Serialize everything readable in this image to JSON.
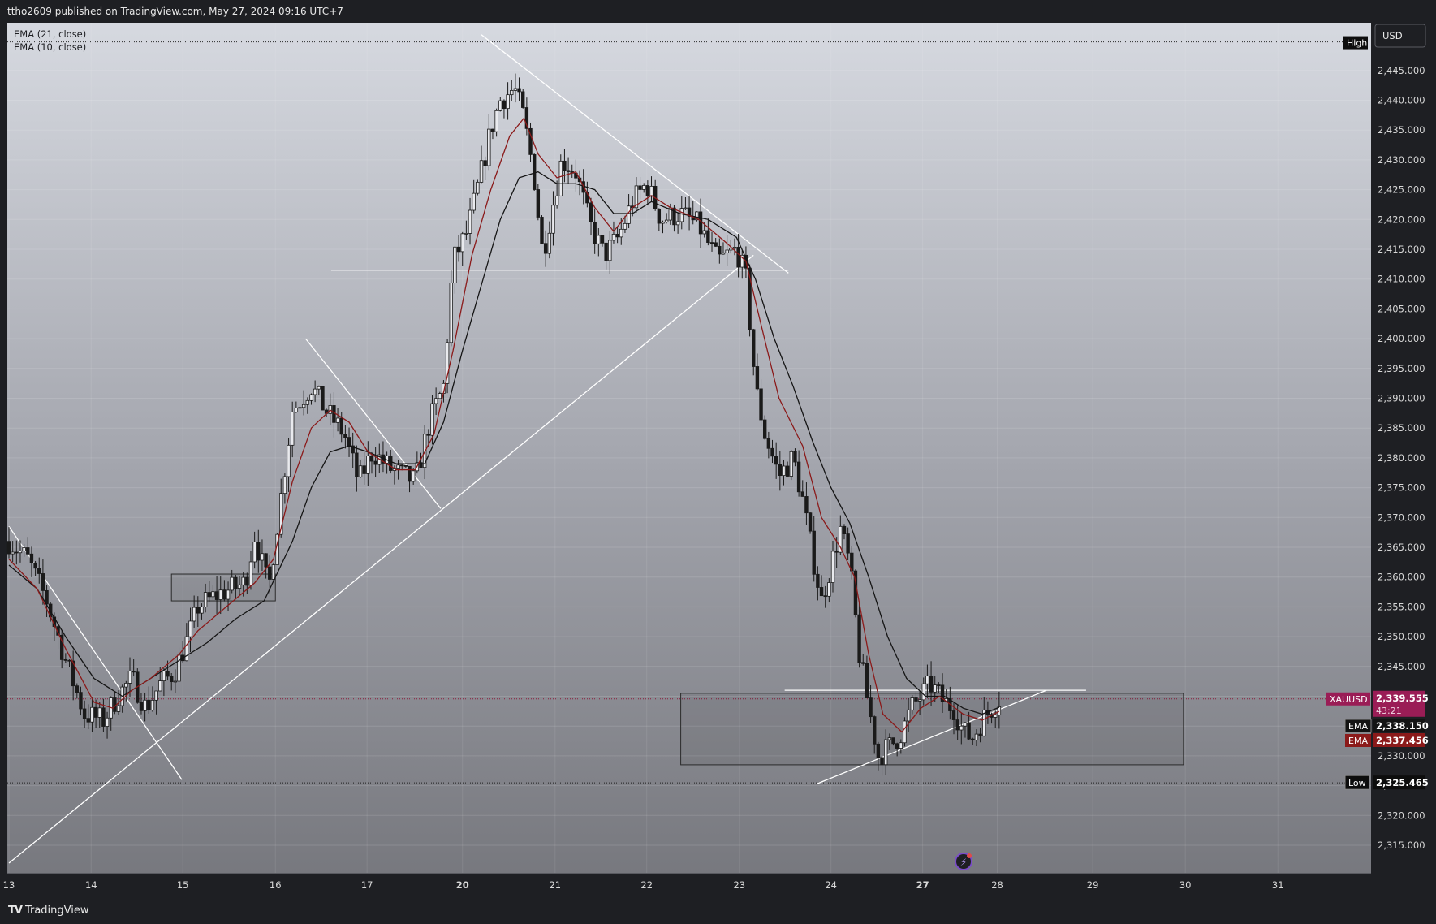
{
  "header": {
    "published_by": "ttho2609 published on TradingView.com, May 27, 2024 09:16 UTC+7"
  },
  "footer": {
    "logo_text": "TradingView"
  },
  "indicators": [
    "EMA (21, close)",
    "EMA (10, close)"
  ],
  "currency_button": "USD",
  "price_labels": {
    "high_tag": "High",
    "low_tag": "Low",
    "low_value": "2,325.465",
    "symbol": "XAUUSD",
    "last_price": "2,339.555",
    "countdown": "43:21",
    "ema_tag": "EMA",
    "ema21_value": "2,338.150",
    "ema10_value": "2,337.456"
  },
  "colors": {
    "symbol_tag": "#9a1d56",
    "ema21_tag": "#141414",
    "ema10_tag": "#8b1a1a",
    "ema10_line": "#8b1a1a",
    "ema21_line": "#151515",
    "candle": "#1a1a1a",
    "trendline": "#ffffff"
  },
  "chart_data": {
    "type": "candlestick",
    "symbol": "XAUUSD",
    "ylim": [
      2310,
      2451
    ],
    "y_ticks": [
      "2,315.000",
      "2,320.000",
      "2,325.000",
      "2,330.000",
      "2,335.000",
      "2,340.000",
      "2,345.000",
      "2,350.000",
      "2,355.000",
      "2,360.000",
      "2,365.000",
      "2,370.000",
      "2,375.000",
      "2,380.000",
      "2,385.000",
      "2,390.000",
      "2,395.000",
      "2,400.000",
      "2,405.000",
      "2,410.000",
      "2,415.000",
      "2,420.000",
      "2,425.000",
      "2,430.000",
      "2,435.000",
      "2,440.000",
      "2,445.000"
    ],
    "x_ticks": [
      {
        "label": "13",
        "day": 0.0,
        "bold": false
      },
      {
        "label": "14",
        "day": 0.87,
        "bold": false
      },
      {
        "label": "15",
        "day": 1.84,
        "bold": false
      },
      {
        "label": "16",
        "day": 2.82,
        "bold": false
      },
      {
        "label": "17",
        "day": 3.79,
        "bold": false
      },
      {
        "label": "20",
        "day": 4.8,
        "bold": true
      },
      {
        "label": "21",
        "day": 5.78,
        "bold": false
      },
      {
        "label": "22",
        "day": 6.75,
        "bold": false
      },
      {
        "label": "23",
        "day": 7.73,
        "bold": false
      },
      {
        "label": "24",
        "day": 8.7,
        "bold": false
      },
      {
        "label": "27",
        "day": 9.67,
        "bold": true
      },
      {
        "label": "28",
        "day": 10.46,
        "bold": false
      },
      {
        "label": "29",
        "day": 11.47,
        "bold": false
      },
      {
        "label": "30",
        "day": 12.45,
        "bold": false
      },
      {
        "label": "31",
        "day": 13.43,
        "bold": false
      }
    ],
    "waypoints": [
      [
        0.0,
        2366
      ],
      [
        0.2,
        2363
      ],
      [
        0.4,
        2356
      ],
      [
        0.6,
        2346
      ],
      [
        0.8,
        2337
      ],
      [
        1.0,
        2336
      ],
      [
        1.15,
        2340
      ],
      [
        1.3,
        2343
      ],
      [
        1.45,
        2338
      ],
      [
        1.6,
        2342
      ],
      [
        1.75,
        2344
      ],
      [
        1.9,
        2350
      ],
      [
        2.0,
        2355
      ],
      [
        2.2,
        2357
      ],
      [
        2.5,
        2359
      ],
      [
        2.6,
        2367
      ],
      [
        2.75,
        2358
      ],
      [
        2.9,
        2376
      ],
      [
        3.0,
        2388
      ],
      [
        3.2,
        2392
      ],
      [
        3.35,
        2388
      ],
      [
        3.55,
        2384
      ],
      [
        3.7,
        2376
      ],
      [
        3.85,
        2381
      ],
      [
        4.05,
        2378
      ],
      [
        4.3,
        2376
      ],
      [
        4.45,
        2386
      ],
      [
        4.6,
        2392
      ],
      [
        4.7,
        2413
      ],
      [
        4.85,
        2418
      ],
      [
        5.0,
        2428
      ],
      [
        5.1,
        2435
      ],
      [
        5.2,
        2440
      ],
      [
        5.35,
        2442
      ],
      [
        5.45,
        2437
      ],
      [
        5.55,
        2428
      ],
      [
        5.65,
        2414
      ],
      [
        5.75,
        2422
      ],
      [
        5.85,
        2430
      ],
      [
        6.0,
        2428
      ],
      [
        6.15,
        2419
      ],
      [
        6.3,
        2414
      ],
      [
        6.45,
        2417
      ],
      [
        6.6,
        2423
      ],
      [
        6.75,
        2426
      ],
      [
        6.9,
        2420
      ],
      [
        7.1,
        2421
      ],
      [
        7.3,
        2419
      ],
      [
        7.5,
        2413
      ],
      [
        7.7,
        2415
      ],
      [
        7.8,
        2410
      ],
      [
        7.9,
        2392
      ],
      [
        8.0,
        2384
      ],
      [
        8.15,
        2377
      ],
      [
        8.3,
        2380
      ],
      [
        8.4,
        2373
      ],
      [
        8.5,
        2364
      ],
      [
        8.6,
        2356
      ],
      [
        8.7,
        2362
      ],
      [
        8.8,
        2368
      ],
      [
        8.9,
        2362
      ],
      [
        9.0,
        2347
      ],
      [
        9.1,
        2338
      ],
      [
        9.2,
        2330
      ],
      [
        9.35,
        2332
      ],
      [
        9.45,
        2334
      ],
      [
        9.55,
        2338
      ],
      [
        9.65,
        2340
      ],
      [
        9.75,
        2342
      ],
      [
        9.9,
        2339
      ],
      [
        10.0,
        2338
      ],
      [
        10.1,
        2334
      ],
      [
        10.2,
        2333
      ],
      [
        10.3,
        2336
      ],
      [
        10.4,
        2338
      ],
      [
        10.48,
        2339.555
      ]
    ],
    "ema10_points": [
      [
        0.0,
        2363
      ],
      [
        0.3,
        2358
      ],
      [
        0.6,
        2348
      ],
      [
        0.9,
        2339
      ],
      [
        1.1,
        2338
      ],
      [
        1.3,
        2341
      ],
      [
        1.5,
        2343
      ],
      [
        1.8,
        2347
      ],
      [
        2.0,
        2351
      ],
      [
        2.3,
        2355
      ],
      [
        2.6,
        2359
      ],
      [
        2.8,
        2363
      ],
      [
        3.0,
        2376
      ],
      [
        3.2,
        2385
      ],
      [
        3.4,
        2388
      ],
      [
        3.6,
        2386
      ],
      [
        3.8,
        2381
      ],
      [
        4.1,
        2378
      ],
      [
        4.3,
        2378
      ],
      [
        4.5,
        2384
      ],
      [
        4.7,
        2398
      ],
      [
        4.9,
        2414
      ],
      [
        5.1,
        2425
      ],
      [
        5.3,
        2434
      ],
      [
        5.45,
        2437
      ],
      [
        5.6,
        2431
      ],
      [
        5.8,
        2427
      ],
      [
        6.0,
        2428
      ],
      [
        6.2,
        2422
      ],
      [
        6.4,
        2418
      ],
      [
        6.6,
        2422
      ],
      [
        6.8,
        2424
      ],
      [
        7.0,
        2422
      ],
      [
        7.3,
        2420
      ],
      [
        7.6,
        2416
      ],
      [
        7.8,
        2413
      ],
      [
        7.95,
        2403
      ],
      [
        8.15,
        2390
      ],
      [
        8.4,
        2382
      ],
      [
        8.6,
        2370
      ],
      [
        8.8,
        2365
      ],
      [
        8.95,
        2360
      ],
      [
        9.1,
        2347
      ],
      [
        9.25,
        2337
      ],
      [
        9.45,
        2334
      ],
      [
        9.65,
        2338
      ],
      [
        9.85,
        2340
      ],
      [
        10.1,
        2337
      ],
      [
        10.3,
        2336
      ],
      [
        10.48,
        2337.456
      ]
    ],
    "ema21_points": [
      [
        0.0,
        2362
      ],
      [
        0.3,
        2358
      ],
      [
        0.6,
        2350
      ],
      [
        0.9,
        2343
      ],
      [
        1.2,
        2340
      ],
      [
        1.5,
        2343
      ],
      [
        1.8,
        2346
      ],
      [
        2.1,
        2349
      ],
      [
        2.4,
        2353
      ],
      [
        2.7,
        2356
      ],
      [
        3.0,
        2366
      ],
      [
        3.2,
        2375
      ],
      [
        3.4,
        2381
      ],
      [
        3.6,
        2382
      ],
      [
        3.8,
        2381
      ],
      [
        4.1,
        2379
      ],
      [
        4.4,
        2379
      ],
      [
        4.6,
        2386
      ],
      [
        4.8,
        2398
      ],
      [
        5.0,
        2409
      ],
      [
        5.2,
        2420
      ],
      [
        5.4,
        2427
      ],
      [
        5.6,
        2428
      ],
      [
        5.8,
        2426
      ],
      [
        6.0,
        2426
      ],
      [
        6.2,
        2425
      ],
      [
        6.4,
        2421
      ],
      [
        6.6,
        2421
      ],
      [
        6.8,
        2423
      ],
      [
        7.1,
        2421
      ],
      [
        7.4,
        2420
      ],
      [
        7.7,
        2417
      ],
      [
        7.9,
        2410
      ],
      [
        8.1,
        2400
      ],
      [
        8.3,
        2392
      ],
      [
        8.5,
        2383
      ],
      [
        8.7,
        2375
      ],
      [
        8.9,
        2369
      ],
      [
        9.1,
        2360
      ],
      [
        9.3,
        2350
      ],
      [
        9.5,
        2343
      ],
      [
        9.7,
        2340
      ],
      [
        9.9,
        2340
      ],
      [
        10.1,
        2338
      ],
      [
        10.3,
        2337
      ],
      [
        10.48,
        2338.15
      ]
    ],
    "drawings": {
      "lines": [
        {
          "x1": 0.0,
          "y1": 2312,
          "x2": 7.88,
          "y2": 2414
        },
        {
          "x1": 0.0,
          "y1": 2368.5,
          "x2": 1.83,
          "y2": 2326
        },
        {
          "x1": 3.14,
          "y1": 2400,
          "x2": 4.57,
          "y2": 2371.5
        },
        {
          "x1": 5.0,
          "y1": 2451,
          "x2": 8.25,
          "y2": 2411
        },
        {
          "x1": 3.41,
          "y1": 2411.5,
          "x2": 8.25,
          "y2": 2411.5
        },
        {
          "x1": 8.55,
          "y1": 2325.3,
          "x2": 10.98,
          "y2": 2341
        },
        {
          "x1": 8.21,
          "y1": 2341,
          "x2": 11.4,
          "y2": 2341
        }
      ],
      "boxes": [
        {
          "x1": 1.72,
          "y1": 2356,
          "x2": 2.82,
          "y2": 2360.5
        },
        {
          "x1": 7.11,
          "y1": 2328.5,
          "x2": 12.43,
          "y2": 2340.5
        }
      ]
    },
    "reference_lines": {
      "high": 2449.8,
      "low": 2325.465,
      "last": 2339.555
    }
  }
}
